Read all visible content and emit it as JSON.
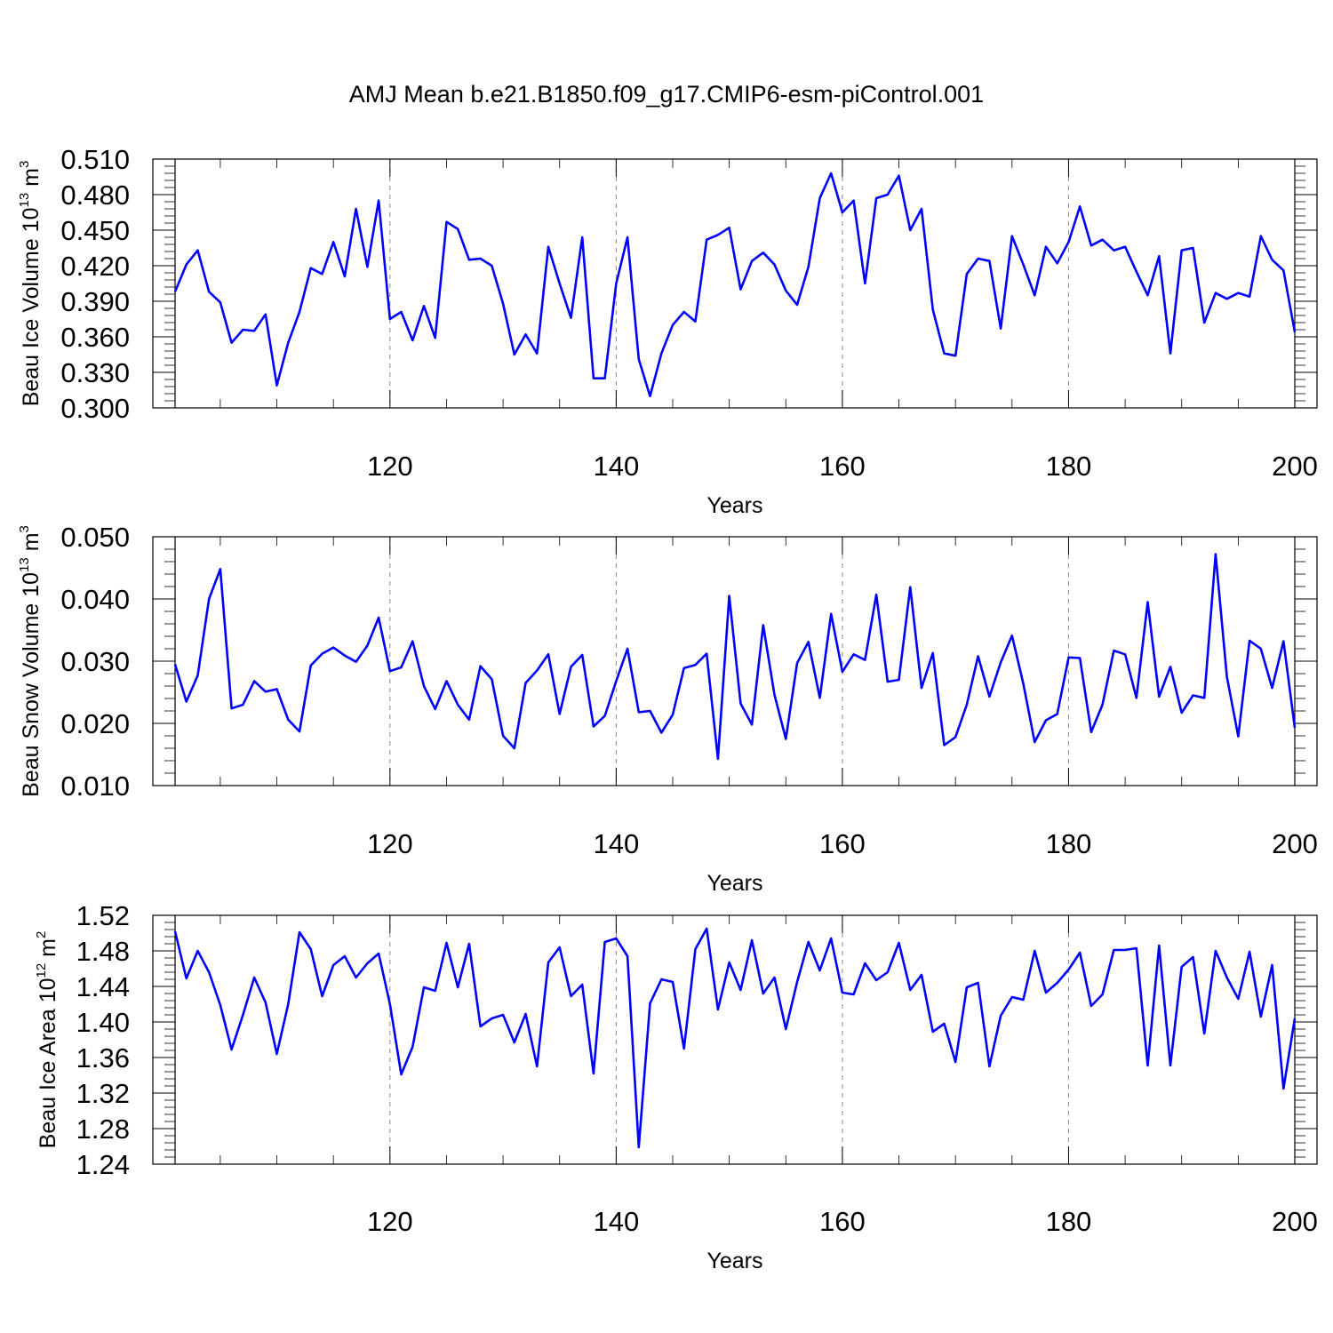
{
  "title": "AMJ Mean b.e21.B1850.f09_g17.CMIP6-esm-piControl.001",
  "line_color": "#0000ff",
  "chart_data": [
    {
      "type": "line",
      "ylabel_main": "Beau Ice Volume 10",
      "ylabel_sup": "13",
      "ylabel_unit": " m",
      "ylabel_unit_sup": "3",
      "xlabel": "Years",
      "xlim": [
        101,
        200
      ],
      "ylim": [
        0.3,
        0.51
      ],
      "ytick_values": [
        0.3,
        0.33,
        0.36,
        0.39,
        0.42,
        0.45,
        0.48,
        0.51
      ],
      "ytick_labels": [
        "0.300",
        "0.330",
        "0.360",
        "0.390",
        "0.420",
        "0.450",
        "0.480",
        "0.510"
      ],
      "xtick_values": [
        120,
        140,
        160,
        180,
        200
      ],
      "xtick_labels": [
        "120",
        "140",
        "160",
        "180",
        "200"
      ],
      "grid_x": [
        120,
        140,
        160,
        180
      ],
      "x_start": 101,
      "values": [
        0.398,
        0.421,
        0.433,
        0.398,
        0.389,
        0.355,
        0.366,
        0.365,
        0.379,
        0.319,
        0.355,
        0.381,
        0.418,
        0.413,
        0.44,
        0.411,
        0.468,
        0.419,
        0.475,
        0.375,
        0.381,
        0.357,
        0.386,
        0.359,
        0.457,
        0.451,
        0.425,
        0.426,
        0.42,
        0.388,
        0.345,
        0.362,
        0.346,
        0.436,
        0.405,
        0.376,
        0.444,
        0.325,
        0.325,
        0.405,
        0.444,
        0.341,
        0.31,
        0.346,
        0.37,
        0.381,
        0.373,
        0.442,
        0.446,
        0.452,
        0.4,
        0.424,
        0.431,
        0.421,
        0.399,
        0.387,
        0.419,
        0.477,
        0.498,
        0.465,
        0.475,
        0.405,
        0.477,
        0.48,
        0.496,
        0.45,
        0.468,
        0.383,
        0.346,
        0.344,
        0.413,
        0.426,
        0.424,
        0.367,
        0.445,
        0.421,
        0.395,
        0.436,
        0.422,
        0.44,
        0.47,
        0.437,
        0.442,
        0.433,
        0.436,
        0.415,
        0.395,
        0.428,
        0.346,
        0.433,
        0.435,
        0.372,
        0.397,
        0.392,
        0.397,
        0.394,
        0.445,
        0.425,
        0.416,
        0.364
      ]
    },
    {
      "type": "line",
      "ylabel_main": "Beau Snow Volume 10",
      "ylabel_sup": "13",
      "ylabel_unit": " m",
      "ylabel_unit_sup": "3",
      "xlabel": "Years",
      "xlim": [
        101,
        200
      ],
      "ylim": [
        0.01,
        0.05
      ],
      "ytick_values": [
        0.01,
        0.02,
        0.03,
        0.04,
        0.05
      ],
      "ytick_labels": [
        "0.010",
        "0.020",
        "0.030",
        "0.040",
        "0.050"
      ],
      "xtick_values": [
        120,
        140,
        160,
        180,
        200
      ],
      "xtick_labels": [
        "120",
        "140",
        "160",
        "180",
        "200"
      ],
      "grid_x": [
        120,
        140,
        160,
        180
      ],
      "x_start": 101,
      "values": [
        0.0295,
        0.0235,
        0.0277,
        0.04,
        0.0448,
        0.0224,
        0.023,
        0.0268,
        0.0251,
        0.0255,
        0.0206,
        0.0187,
        0.0293,
        0.0312,
        0.0322,
        0.0309,
        0.0299,
        0.0325,
        0.037,
        0.0284,
        0.029,
        0.0332,
        0.026,
        0.0223,
        0.0268,
        0.023,
        0.0206,
        0.0292,
        0.0271,
        0.018,
        0.016,
        0.0265,
        0.0285,
        0.0311,
        0.0215,
        0.0291,
        0.031,
        0.0195,
        0.0212,
        0.0268,
        0.032,
        0.0218,
        0.022,
        0.0185,
        0.0214,
        0.0289,
        0.0294,
        0.0312,
        0.0143,
        0.0405,
        0.0232,
        0.0198,
        0.0358,
        0.0246,
        0.0175,
        0.0297,
        0.0331,
        0.0241,
        0.0376,
        0.0283,
        0.0311,
        0.0302,
        0.0407,
        0.0267,
        0.027,
        0.0419,
        0.0257,
        0.0313,
        0.0165,
        0.0178,
        0.023,
        0.0308,
        0.0243,
        0.0298,
        0.0341,
        0.0264,
        0.017,
        0.0205,
        0.0215,
        0.0306,
        0.0305,
        0.0186,
        0.023,
        0.0317,
        0.0311,
        0.0241,
        0.0395,
        0.0243,
        0.0291,
        0.0217,
        0.0245,
        0.0241,
        0.0472,
        0.0275,
        0.0179,
        0.0333,
        0.032,
        0.0257,
        0.0332,
        0.0193
      ]
    },
    {
      "type": "line",
      "ylabel_main": "Beau Ice Area 10",
      "ylabel_sup": "12",
      "ylabel_unit": " m",
      "ylabel_unit_sup": "2",
      "xlabel": "Years",
      "xlim": [
        101,
        200
      ],
      "ylim": [
        1.24,
        1.52
      ],
      "ytick_values": [
        1.24,
        1.28,
        1.32,
        1.36,
        1.4,
        1.44,
        1.48,
        1.52
      ],
      "ytick_labels": [
        "1.24",
        "1.28",
        "1.32",
        "1.36",
        "1.40",
        "1.44",
        "1.48",
        "1.52"
      ],
      "xtick_values": [
        120,
        140,
        160,
        180,
        200
      ],
      "xtick_labels": [
        "120",
        "140",
        "160",
        "180",
        "200"
      ],
      "grid_x": [
        120,
        140,
        160,
        180
      ],
      "x_start": 101,
      "values": [
        1.502,
        1.449,
        1.48,
        1.456,
        1.419,
        1.369,
        1.408,
        1.45,
        1.422,
        1.364,
        1.42,
        1.501,
        1.482,
        1.429,
        1.464,
        1.474,
        1.45,
        1.466,
        1.477,
        1.42,
        1.341,
        1.372,
        1.439,
        1.435,
        1.489,
        1.439,
        1.488,
        1.395,
        1.404,
        1.408,
        1.377,
        1.409,
        1.35,
        1.467,
        1.484,
        1.429,
        1.442,
        1.342,
        1.49,
        1.494,
        1.474,
        1.259,
        1.421,
        1.448,
        1.445,
        1.37,
        1.482,
        1.505,
        1.414,
        1.467,
        1.436,
        1.492,
        1.432,
        1.45,
        1.392,
        1.445,
        1.49,
        1.458,
        1.494,
        1.433,
        1.431,
        1.466,
        1.447,
        1.456,
        1.489,
        1.436,
        1.453,
        1.389,
        1.398,
        1.355,
        1.439,
        1.444,
        1.35,
        1.407,
        1.428,
        1.425,
        1.48,
        1.433,
        1.444,
        1.459,
        1.478,
        1.418,
        1.431,
        1.481,
        1.481,
        1.483,
        1.351,
        1.486,
        1.351,
        1.462,
        1.473,
        1.387,
        1.48,
        1.45,
        1.426,
        1.479,
        1.406,
        1.464,
        1.325,
        1.404
      ]
    }
  ]
}
